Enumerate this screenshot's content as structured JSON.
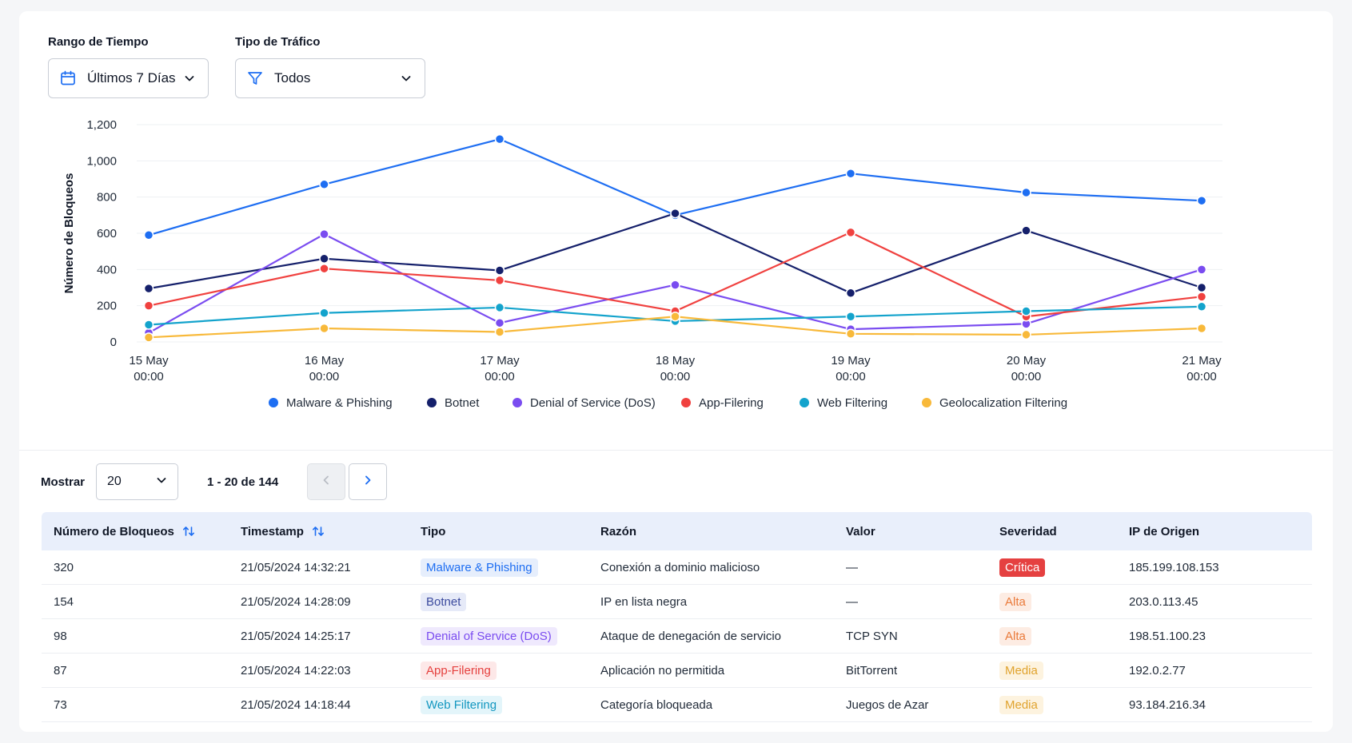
{
  "filters": {
    "time_range": {
      "label": "Rango de Tiempo",
      "value": "Últimos 7 Días",
      "icon": "calendar-icon"
    },
    "traffic_type": {
      "label": "Tipo de Tráfico",
      "value": "Todos",
      "icon": "filter-icon"
    }
  },
  "chart_data": {
    "type": "line",
    "ylabel": "Número de Bloqueos",
    "xlabel": "",
    "ylim": [
      0,
      1200
    ],
    "yticks": [
      0,
      200,
      400,
      600,
      800,
      1000,
      1200
    ],
    "ytick_labels": [
      "0",
      "200",
      "400",
      "600",
      "800",
      "1,000",
      "1,200"
    ],
    "categories": [
      [
        "15 May",
        "00:00"
      ],
      [
        "16 May",
        "00:00"
      ],
      [
        "17 May",
        "00:00"
      ],
      [
        "18 May",
        "00:00"
      ],
      [
        "19 May",
        "00:00"
      ],
      [
        "20 May",
        "00:00"
      ],
      [
        "21 May",
        "00:00"
      ]
    ],
    "grid": "horizontal",
    "legend_position": "bottom",
    "series": [
      {
        "name": "Malware & Phishing",
        "color": "#1e6ef2",
        "values": [
          590,
          870,
          1120,
          700,
          930,
          825,
          780
        ]
      },
      {
        "name": "Botnet",
        "color": "#15206b",
        "values": [
          295,
          460,
          395,
          710,
          270,
          615,
          300
        ]
      },
      {
        "name": "Denial of Service (DoS)",
        "color": "#7a4cf0",
        "values": [
          50,
          595,
          105,
          315,
          70,
          100,
          400
        ]
      },
      {
        "name": "App-Filering",
        "color": "#f0413f",
        "values": [
          200,
          405,
          340,
          170,
          605,
          140,
          250
        ]
      },
      {
        "name": "Web Filtering",
        "color": "#13a3cc",
        "values": [
          95,
          160,
          190,
          115,
          140,
          170,
          195
        ]
      },
      {
        "name": "Geolocalization Filtering",
        "color": "#f8b93a",
        "values": [
          25,
          75,
          55,
          140,
          45,
          40,
          75
        ]
      }
    ]
  },
  "pagination": {
    "show_label": "Mostrar",
    "page_size": "20",
    "range_text": "1 - 20 de 144"
  },
  "table": {
    "headers": {
      "blocks": "Número de Bloqueos",
      "timestamp": "Timestamp",
      "type": "Tipo",
      "reason": "Razón",
      "value": "Valor",
      "severity": "Severidad",
      "source_ip": "IP de Origen"
    },
    "rows": [
      {
        "blocks": "320",
        "timestamp": "21/05/2024 14:32:21",
        "type": "Malware & Phishing",
        "type_color": "#1e6ef2",
        "type_bg": "#e6eefc",
        "reason": "Conexión a dominio malicioso",
        "value": "—",
        "severity": "Crítica",
        "severity_color": "#ffffff",
        "severity_bg": "#e54040",
        "source_ip": "185.199.108.153"
      },
      {
        "blocks": "154",
        "timestamp": "21/05/2024 14:28:09",
        "type": "Botnet",
        "type_color": "#3b4a9e",
        "type_bg": "#e6eaf8",
        "reason": "IP en lista negra",
        "value": "—",
        "severity": "Alta",
        "severity_color": "#ea7a3a",
        "severity_bg": "#fdece3",
        "source_ip": "203.0.113.45"
      },
      {
        "blocks": "98",
        "timestamp": "21/05/2024 14:25:17",
        "type": "Denial of Service (DoS)",
        "type_color": "#7a4cf0",
        "type_bg": "#efe9fd",
        "reason": "Ataque de denegación de servicio",
        "value": "TCP SYN",
        "severity": "Alta",
        "severity_color": "#ea7a3a",
        "severity_bg": "#fdece3",
        "source_ip": "198.51.100.23"
      },
      {
        "blocks": "87",
        "timestamp": "21/05/2024 14:22:03",
        "type": "App-Filering",
        "type_color": "#e5413f",
        "type_bg": "#fde8e8",
        "reason": "Aplicación no permitida",
        "value": "BitTorrent",
        "severity": "Media",
        "severity_color": "#e0a32e",
        "severity_bg": "#fdf3df",
        "source_ip": "192.0.2.77"
      },
      {
        "blocks": "73",
        "timestamp": "21/05/2024 14:18:44",
        "type": "Web Filtering",
        "type_color": "#1397c0",
        "type_bg": "#e3f5fa",
        "reason": "Categoría bloqueada",
        "value": "Juegos de Azar",
        "severity": "Media",
        "severity_color": "#e0a32e",
        "severity_bg": "#fdf3df",
        "source_ip": "93.184.216.34"
      }
    ]
  }
}
